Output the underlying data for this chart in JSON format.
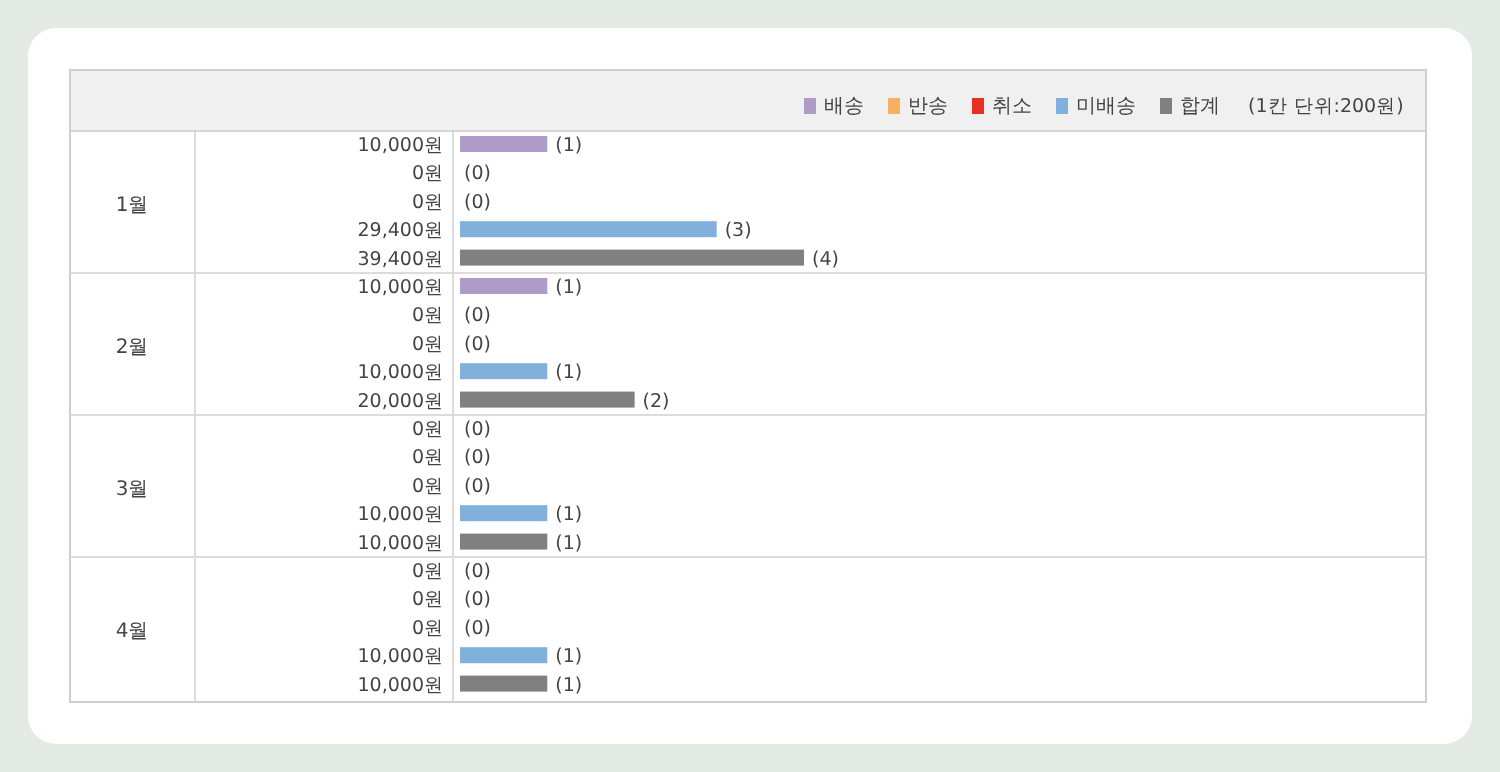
{
  "chart_data": {
    "type": "bar",
    "orientation": "horizontal",
    "legend": "top right",
    "annotations": [
      "(1칸 단위:200원)",
      "(1)",
      "(0)",
      "(0)",
      "(3)",
      "(4)",
      "(1)",
      "(0)",
      "(0)",
      "(1)",
      "(2)",
      "(0)",
      "(0)",
      "(0)",
      "(1)",
      "(1)",
      "(0)",
      "(0)",
      "(0)",
      "(1)",
      "(1)"
    ],
    "categories": [
      "1월",
      "2월",
      "3월",
      "4월"
    ],
    "series": [
      {
        "name": "배송",
        "color": "#b09ac8",
        "values": [
          10000,
          10000,
          0,
          0
        ],
        "value_labels": [
          "10,000원",
          "10,000원",
          "0원",
          "0원"
        ]
      },
      {
        "name": "반송",
        "color": "#f5b060",
        "values": [
          0,
          0,
          0,
          0
        ],
        "value_labels": [
          "0원",
          "0원",
          "0원",
          "0원"
        ]
      },
      {
        "name": "취소",
        "color": "#e83020",
        "values": [
          0,
          0,
          0,
          0
        ],
        "value_labels": [
          "0원",
          "0원",
          "0원",
          "0원"
        ]
      },
      {
        "name": "미배송",
        "color": "#82b0dc",
        "values": [
          29400,
          10000,
          10000,
          10000
        ],
        "value_labels": [
          "29,400원",
          "10,000원",
          "10,000원",
          "10,000원"
        ]
      },
      {
        "name": "합계",
        "color": "#808080",
        "values": [
          39400,
          20000,
          10000,
          10000
        ],
        "value_labels": [
          "39,400원",
          "20,000원",
          "10,000원",
          "10,000원"
        ]
      }
    ]
  }
}
